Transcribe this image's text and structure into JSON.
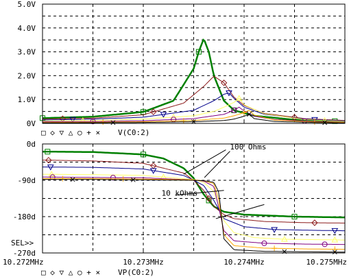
{
  "colors": {
    "background": "#ffffff",
    "frame": "#000000",
    "grid": "#000000",
    "series": [
      "#008000",
      "#8b1a1a",
      "#00008b",
      "#ffff66",
      "#800080",
      "#ffa500",
      "#000000"
    ]
  },
  "chart_data": [
    {
      "type": "line",
      "title": "",
      "xlabel": "",
      "ylabel": "",
      "xlim": [
        10.272,
        10.275
      ],
      "ylim": [
        0,
        5.0
      ],
      "grid": true,
      "yticks": [
        {
          "value": 0,
          "label": "0V"
        },
        {
          "value": 1.0,
          "label": "1.0V"
        },
        {
          "value": 2.0,
          "label": "2.0V"
        },
        {
          "value": 3.0,
          "label": "3.0V"
        },
        {
          "value": 4.0,
          "label": "4.0V"
        },
        {
          "value": 5.0,
          "label": "5.0V"
        }
      ],
      "legend": {
        "placement": "bottom-left",
        "marker_glyphs": "□ ◇ ▽ △ ○ + ×",
        "label": "V(C0:2)"
      },
      "series": [
        {
          "x": [
            10.272,
            10.2725,
            10.273,
            10.2733,
            10.2735,
            10.27355,
            10.2736,
            10.27365,
            10.2737,
            10.2738,
            10.2739,
            10.2741,
            10.2745,
            10.275
          ],
          "values": [
            0.22,
            0.28,
            0.48,
            0.95,
            2.3,
            3.0,
            3.55,
            3.0,
            2.0,
            0.95,
            0.55,
            0.32,
            0.15,
            0.08
          ],
          "markers": [
            10.272,
            10.273,
            10.27355,
            10.2739,
            10.2749
          ]
        },
        {
          "x": [
            10.272,
            10.2725,
            10.273,
            10.2734,
            10.2736,
            10.2737,
            10.2738,
            10.2739,
            10.274,
            10.2742,
            10.2746,
            10.275
          ],
          "values": [
            0.18,
            0.22,
            0.36,
            0.85,
            1.55,
            1.98,
            1.7,
            1.1,
            0.75,
            0.42,
            0.2,
            0.12
          ],
          "markers": [
            10.2722,
            10.2731,
            10.2738,
            10.2745
          ]
        },
        {
          "x": [
            10.272,
            10.2725,
            10.273,
            10.2735,
            10.2737,
            10.2738,
            10.27385,
            10.2739,
            10.274,
            10.2742,
            10.2746,
            10.275
          ],
          "values": [
            0.14,
            0.18,
            0.26,
            0.55,
            0.95,
            1.22,
            1.28,
            1.05,
            0.68,
            0.38,
            0.18,
            0.1
          ],
          "markers": [
            10.2723,
            10.2732,
            10.27385,
            10.2747
          ]
        },
        {
          "x": [
            10.272,
            10.2725,
            10.273,
            10.2735,
            10.2737,
            10.2738,
            10.2739,
            10.27395,
            10.274,
            10.2742,
            10.2746,
            10.275
          ],
          "values": [
            0.1,
            0.12,
            0.18,
            0.32,
            0.5,
            0.68,
            0.88,
            1.05,
            0.78,
            0.4,
            0.16,
            0.08
          ],
          "markers": [
            10.2724,
            10.2733,
            10.27395,
            10.2748
          ]
        },
        {
          "x": [
            10.272,
            10.2725,
            10.273,
            10.2735,
            10.2738,
            10.2739,
            10.27395,
            10.274,
            10.2741,
            10.2743,
            10.2747,
            10.275
          ],
          "values": [
            0.07,
            0.08,
            0.11,
            0.2,
            0.38,
            0.55,
            0.68,
            0.52,
            0.3,
            0.16,
            0.08,
            0.05
          ],
          "markers": [
            10.2725,
            10.2733,
            10.2739,
            10.2746
          ]
        },
        {
          "x": [
            10.272,
            10.2725,
            10.273,
            10.2735,
            10.2738,
            10.2739,
            10.274,
            10.27405,
            10.2741,
            10.2743,
            10.2747,
            10.275
          ],
          "values": [
            0.04,
            0.05,
            0.07,
            0.12,
            0.22,
            0.32,
            0.45,
            0.55,
            0.35,
            0.14,
            0.06,
            0.04
          ],
          "markers": [
            10.2726,
            10.2734,
            10.274,
            10.2747
          ]
        },
        {
          "x": [
            10.272,
            10.2725,
            10.273,
            10.2735,
            10.2738,
            10.2739,
            10.274,
            10.27405,
            10.2741,
            10.2743,
            10.2747,
            10.275
          ],
          "values": [
            0.02,
            0.03,
            0.04,
            0.07,
            0.12,
            0.18,
            0.3,
            0.38,
            0.2,
            0.08,
            0.04,
            0.02
          ],
          "markers": [
            10.2727,
            10.2735,
            10.27405,
            10.2748
          ]
        }
      ]
    },
    {
      "type": "line",
      "title": "",
      "xlabel": "",
      "ylabel": "",
      "xlim": [
        10.272,
        10.275
      ],
      "ylim": [
        -270,
        0
      ],
      "grid": true,
      "xticks": [
        {
          "value": 10.272,
          "label": "10.272MHz"
        },
        {
          "value": 10.273,
          "label": "10.273MHz"
        },
        {
          "value": 10.274,
          "label": "10.274MHz"
        },
        {
          "value": 10.275,
          "label": "10.275MHz"
        }
      ],
      "yticks": [
        {
          "value": 0,
          "label": "0d"
        },
        {
          "value": -90,
          "label": "-90d"
        },
        {
          "value": -180,
          "label": "-180d"
        },
        {
          "value": -270,
          "label": "-270d"
        }
      ],
      "selection_marker": "SEL>>",
      "legend": {
        "placement": "bottom-left",
        "marker_glyphs": "□ ◇ ▽ △ ○ + ×",
        "label": "VP(C0:2)"
      },
      "annotations": [
        {
          "text": "100 Ohms",
          "x": 10.27386,
          "y": -14
        },
        {
          "text": "10 kOhms",
          "x": 10.27318,
          "y": -128
        }
      ],
      "series": [
        {
          "x": [
            10.272,
            10.2725,
            10.273,
            10.2732,
            10.2734,
            10.2735,
            10.2736,
            10.2737,
            10.2738,
            10.274,
            10.2745,
            10.275
          ],
          "values": [
            -19,
            -20,
            -26,
            -36,
            -60,
            -85,
            -125,
            -155,
            -168,
            -175,
            -180,
            -182
          ],
          "markers": [
            10.27205,
            10.273,
            10.27365,
            10.2745
          ]
        },
        {
          "x": [
            10.272,
            10.2725,
            10.273,
            10.2734,
            10.2735,
            10.2736,
            10.2737,
            10.2738,
            10.2739,
            10.2742,
            10.2746,
            10.275
          ],
          "values": [
            -40,
            -42,
            -48,
            -72,
            -90,
            -115,
            -155,
            -175,
            -185,
            -192,
            -195,
            -196
          ],
          "markers": [
            10.27206,
            10.2731,
            10.27365,
            10.2747
          ]
        },
        {
          "x": [
            10.272,
            10.2725,
            10.273,
            10.2734,
            10.2735,
            10.2736,
            10.2737,
            10.2738,
            10.274,
            10.2743,
            10.2747,
            10.275
          ],
          "values": [
            -57,
            -58,
            -62,
            -78,
            -90,
            -103,
            -140,
            -185,
            -205,
            -212,
            -214,
            -215
          ],
          "markers": [
            10.27208,
            10.2731,
            10.2743,
            10.2749
          ]
        },
        {
          "x": [
            10.272,
            10.2725,
            10.273,
            10.2735,
            10.2736,
            10.2737,
            10.2738,
            10.2739,
            10.2741,
            10.2744,
            10.275
          ],
          "values": [
            -75,
            -76,
            -78,
            -88,
            -95,
            -118,
            -190,
            -220,
            -232,
            -236,
            -238
          ],
          "markers": [
            10.27209,
            10.2732,
            10.2744,
            10.2749
          ]
        },
        {
          "x": [
            10.272,
            10.2725,
            10.273,
            10.2735,
            10.2736,
            10.2737,
            10.27375,
            10.2738,
            10.2739,
            10.2742,
            10.2746,
            10.275
          ],
          "values": [
            -82,
            -83,
            -84,
            -89,
            -92,
            -105,
            -160,
            -215,
            -240,
            -246,
            -248,
            -249
          ],
          "markers": [
            10.2721,
            10.2727,
            10.2742,
            10.2748
          ]
        },
        {
          "x": [
            10.272,
            10.2725,
            10.273,
            10.2735,
            10.2736,
            10.2737,
            10.27375,
            10.2738,
            10.2739,
            10.2742,
            10.2746,
            10.275
          ],
          "values": [
            -86,
            -86,
            -87,
            -89,
            -91,
            -98,
            -140,
            -225,
            -252,
            -258,
            -260,
            -261
          ],
          "markers": [
            10.2722,
            10.2728,
            10.2743,
            10.2749
          ]
        },
        {
          "x": [
            10.272,
            10.2725,
            10.273,
            10.2735,
            10.2736,
            10.2737,
            10.27375,
            10.2738,
            10.2739,
            10.2742,
            10.2746,
            10.275
          ],
          "values": [
            -88,
            -88,
            -89,
            -90,
            -91,
            -95,
            -120,
            -235,
            -262,
            -266,
            -267,
            -268
          ],
          "markers": [
            10.2723,
            10.2729,
            10.2744,
            10.2749
          ]
        }
      ]
    }
  ]
}
